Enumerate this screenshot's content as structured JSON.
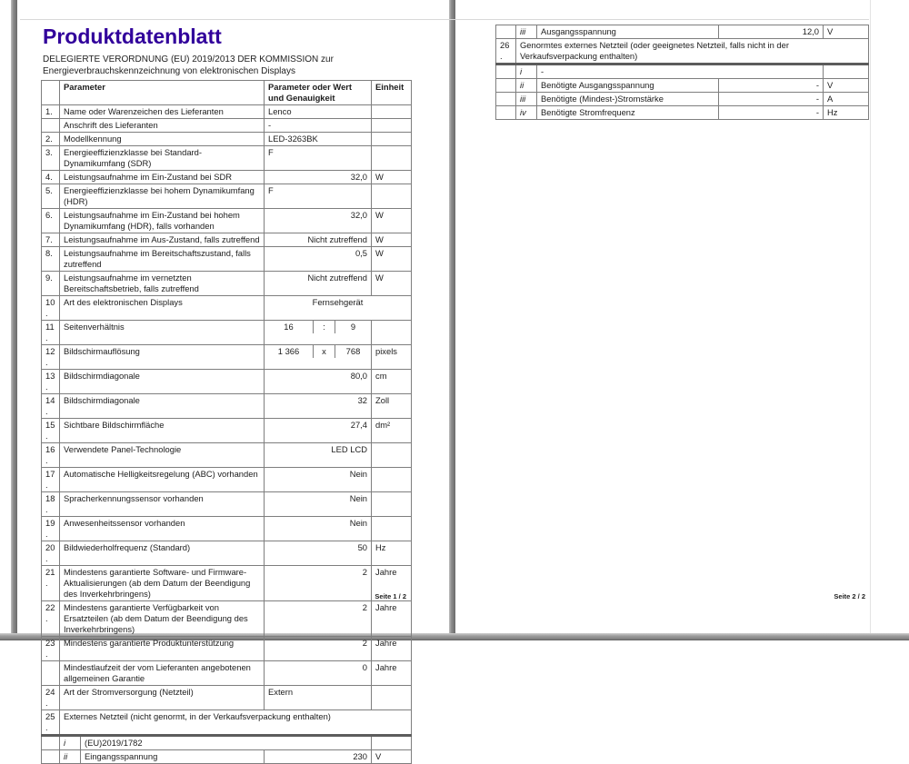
{
  "colors": {
    "title": "#31009b",
    "table_border": "#7e7e7e"
  },
  "page1": {
    "title": "Produktdatenblatt",
    "subtitle_line1": "DELEGIERTE VERORDNUNG (EU) 2019/2013 DER KOMMISSION zur",
    "subtitle_line2": "Energieverbrauchskennzeichnung von elektronischen Displays",
    "footer": "Seite 1 / 2",
    "table": {
      "header_num": "",
      "header_param": "Parameter",
      "header_value": "Parameter oder Wert und Genauigkeit",
      "header_unit": "Einheit",
      "rows": [
        {
          "num": "1.",
          "param": "Name oder Warenzeichen des Lieferanten",
          "value": "Lenco",
          "unit": "",
          "align": "left"
        },
        {
          "num": "",
          "param": "Anschrift des Lieferanten",
          "value": "-",
          "unit": "",
          "align": "left"
        },
        {
          "num": "2.",
          "param": "Modellkennung",
          "value": "LED-3263BK",
          "unit": "",
          "align": "left"
        },
        {
          "num": "3.",
          "param": "Energieeffizienzklasse bei Standard-Dynamikumfang (SDR)",
          "value": "F",
          "unit": "",
          "align": "left"
        },
        {
          "num": "4.",
          "param": "Leistungsaufnahme im Ein-Zustand bei SDR",
          "value": "32,0",
          "unit": "W",
          "align": "right"
        },
        {
          "num": "5.",
          "param": "Energieeffizienzklasse bei hohem Dynamikumfang (HDR)",
          "value": "F",
          "unit": "",
          "align": "left"
        },
        {
          "num": "6.",
          "param": "Leistungsaufnahme im Ein-Zustand bei hohem Dynamikumfang (HDR), falls vorhanden",
          "value": "32,0",
          "unit": "W",
          "align": "right"
        },
        {
          "num": "7.",
          "param": "Leistungsaufnahme im Aus-Zustand, falls zutreffend",
          "value": "Nicht zutreffend",
          "unit": "W",
          "align": "right"
        },
        {
          "num": "8.",
          "param": "Leistungsaufnahme im Bereitschaftszustand, falls zutreffend",
          "value": "0,5",
          "unit": "W",
          "align": "right"
        },
        {
          "num": "9.",
          "param": "Leistungsaufnahme im vernetzten Bereitschaftsbetrieb, falls zutreffend",
          "value": "Nicht zutreffend",
          "unit": "W",
          "align": "right"
        },
        {
          "num": "10.",
          "param": "Art des elektronischen Displays",
          "value": "Fernsehgerät",
          "unit": "",
          "align": "center",
          "merge_unit": true
        },
        {
          "num": "11.",
          "param": "Seitenverhältnis",
          "triple": [
            "16",
            ":",
            "9"
          ],
          "unit": ""
        },
        {
          "num": "12.",
          "param": "Bildschirmauflösung",
          "triple": [
            "1 366",
            "x",
            "768"
          ],
          "unit": "pixels"
        },
        {
          "num": "13.",
          "param": "Bildschirmdiagonale",
          "value": "80,0",
          "unit": "cm",
          "align": "right"
        },
        {
          "num": "14.",
          "param": "Bildschirmdiagonale",
          "value": "32",
          "unit": "Zoll",
          "align": "right"
        },
        {
          "num": "15.",
          "param": "Sichtbare Bildschirmfläche",
          "value": "27,4",
          "unit": "dm²",
          "align": "right"
        },
        {
          "num": "16.",
          "param": "Verwendete Panel-Technologie",
          "value": "LED LCD",
          "unit": "",
          "align": "right"
        },
        {
          "num": "17.",
          "param": "Automatische Helligkeitsregelung (ABC) vorhanden",
          "value": "Nein",
          "unit": "",
          "align": "right"
        },
        {
          "num": "18.",
          "param": "Spracherkennungssensor vorhanden",
          "value": "Nein",
          "unit": "",
          "align": "right"
        },
        {
          "num": "19.",
          "param": "Anwesenheitssensor vorhanden",
          "value": "Nein",
          "unit": "",
          "align": "right"
        },
        {
          "num": "20.",
          "param": "Bildwiederholfrequenz (Standard)",
          "value": "50",
          "unit": "Hz",
          "align": "right"
        },
        {
          "num": "21.",
          "param": "Mindestens garantierte Software- und Firmware-Aktualisierungen (ab dem Datum der Beendigung des Inverkehrbringens)",
          "value": "2",
          "unit": "Jahre",
          "align": "right"
        },
        {
          "num": "22.",
          "param": "Mindestens garantierte Verfügbarkeit von Ersatzteilen (ab dem Datum der Beendigung des Inverkehrbringens)",
          "value": "2",
          "unit": "Jahre",
          "align": "right"
        },
        {
          "num": "23.",
          "param": "Mindestens garantierte Produktunterstützung",
          "value": "2",
          "unit": "Jahre",
          "align": "right"
        },
        {
          "num": "",
          "param": "Mindestlaufzeit der vom Lieferanten angebotenen allgemeinen Garantie",
          "value": "0",
          "unit": "Jahre",
          "align": "right"
        },
        {
          "num": "24.",
          "param": "Art der Stromversorgung (Netzteil)",
          "value": "Extern",
          "unit": "",
          "align": "left"
        },
        {
          "num": "25.",
          "span": "Externes Netzteil (nicht genormt, in der Verkaufsverpackung enthalten)",
          "thick": true
        },
        {
          "num": "",
          "sub": "i",
          "param": "(EU)2019/1782",
          "unit": "",
          "merge_value": true
        },
        {
          "num": "",
          "sub": "ii",
          "param": "Eingangsspannung",
          "value": "230",
          "unit": "V",
          "align": "right"
        }
      ]
    }
  },
  "page2": {
    "footer": "Seite 2 / 2",
    "table": {
      "rows": [
        {
          "num": "",
          "sub": "iii",
          "param": "Ausgangsspannung",
          "value": "12,0",
          "unit": "V",
          "align": "right"
        },
        {
          "num": "26.",
          "span": "Genormtes externes Netzteil (oder geeignetes Netzteil, falls nicht in der Verkaufsverpackung enthalten)",
          "thick": true
        },
        {
          "num": "",
          "sub": "i",
          "param": "-",
          "unit": "",
          "merge_value": true
        },
        {
          "num": "",
          "sub": "ii",
          "param": "Benötigte Ausgangsspannung",
          "value": "-",
          "unit": "V",
          "align": "right"
        },
        {
          "num": "",
          "sub": "iii",
          "param": "Benötigte (Mindest-)Stromstärke",
          "value": "-",
          "unit": "A",
          "align": "right"
        },
        {
          "num": "",
          "sub": "iv",
          "param": "Benötigte Stromfrequenz",
          "value": "-",
          "unit": "Hz",
          "align": "right"
        }
      ]
    }
  }
}
